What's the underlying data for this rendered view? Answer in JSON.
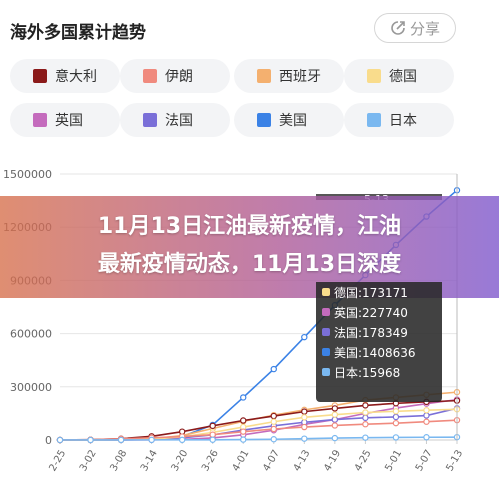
{
  "header": {
    "title": "海外多国累计趋势",
    "share_label": "分享",
    "share_icon": "share-icon"
  },
  "legend": [
    {
      "name": "意大利",
      "color": "#8b1a1a"
    },
    {
      "name": "伊朗",
      "color": "#f08a7e"
    },
    {
      "name": "西班牙",
      "color": "#f4b06f"
    },
    {
      "name": "德国",
      "color": "#f9dc8c"
    },
    {
      "name": "英国",
      "color": "#c46bbd"
    },
    {
      "name": "法国",
      "color": "#7a6fd8"
    },
    {
      "name": "美国",
      "color": "#3b82e6"
    },
    {
      "name": "日本",
      "color": "#7ab8f0"
    }
  ],
  "banner": {
    "line1": "11月13日江油最新疫情，江油",
    "line2": "最新疫情动态，11月13日深度"
  },
  "tooltip": {
    "date": "5-13",
    "rows": [
      {
        "label": "德国:173171",
        "color": "#f9dc8c"
      },
      {
        "label": "英国:227740",
        "color": "#c46bbd"
      },
      {
        "label": "法国:178349",
        "color": "#7a6fd8"
      },
      {
        "label": "美国:1408636",
        "color": "#3b82e6"
      },
      {
        "label": "日本:15968",
        "color": "#7ab8f0"
      }
    ]
  },
  "chart_data": {
    "type": "line",
    "categories": [
      "2-25",
      "3-02",
      "3-08",
      "3-14",
      "3-20",
      "3-26",
      "4-01",
      "4-07",
      "4-13",
      "4-19",
      "4-25",
      "5-01",
      "5-07",
      "5-13"
    ],
    "ylim": [
      0,
      1500000
    ],
    "yticks": [
      "0",
      "300000",
      "600000",
      "900000",
      "1200000",
      "1500000"
    ],
    "series": [
      {
        "name": "美国",
        "color": "#3b82e6",
        "values": [
          50,
          100,
          500,
          3000,
          20000,
          85000,
          240000,
          400000,
          580000,
          760000,
          930000,
          1100000,
          1260000,
          1408636
        ]
      },
      {
        "name": "西班牙",
        "color": "#f4b06f",
        "values": [
          10,
          120,
          600,
          6000,
          25000,
          65000,
          105000,
          140000,
          170000,
          195000,
          225000,
          240000,
          255000,
          270000
        ]
      },
      {
        "name": "英国",
        "color": "#c46bbd",
        "values": [
          15,
          40,
          270,
          1100,
          3300,
          11600,
          29500,
          55000,
          88000,
          115000,
          150000,
          180000,
          205000,
          227740
        ]
      },
      {
        "name": "意大利",
        "color": "#8b1a1a",
        "values": [
          300,
          2000,
          7300,
          21000,
          47000,
          80000,
          110000,
          135000,
          160000,
          178000,
          195000,
          207000,
          215000,
          222000
        ]
      },
      {
        "name": "法国",
        "color": "#7a6fd8",
        "values": [
          15,
          190,
          900,
          4500,
          12600,
          29000,
          56000,
          80000,
          100000,
          115000,
          125000,
          130000,
          138000,
          178349
        ]
      },
      {
        "name": "德国",
        "color": "#f9dc8c",
        "values": [
          20,
          150,
          900,
          4600,
          18000,
          43000,
          73000,
          103000,
          128000,
          143000,
          155000,
          162000,
          168000,
          173171
        ]
      },
      {
        "name": "伊朗",
        "color": "#f08a7e",
        "values": [
          95,
          1500,
          6500,
          12700,
          19600,
          30000,
          47000,
          62000,
          73000,
          82000,
          89000,
          95000,
          103000,
          112000
        ]
      },
      {
        "name": "日本",
        "color": "#7ab8f0",
        "values": [
          160,
          250,
          450,
          770,
          1000,
          1300,
          2400,
          4300,
          7600,
          10700,
          13200,
          14500,
          15500,
          15968
        ]
      }
    ]
  }
}
